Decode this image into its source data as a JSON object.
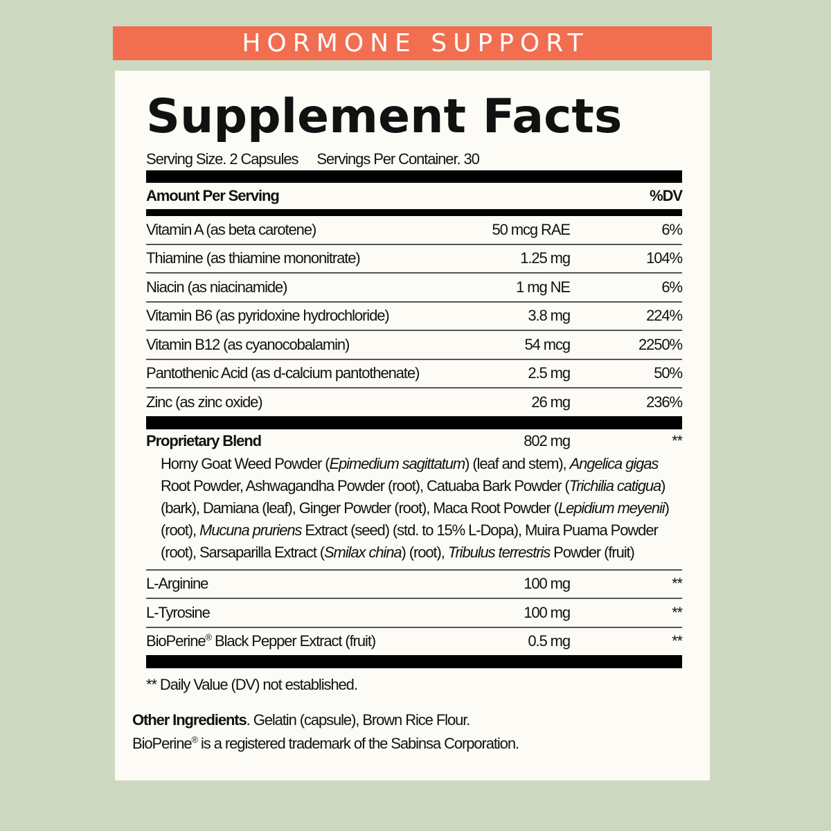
{
  "banner": "HORMONE SUPPORT",
  "colors": {
    "banner": "#f26e50",
    "background": "#cdd8c0",
    "panel": "#fdfbf6"
  },
  "title": "Supplement Facts",
  "serving_size": "Serving Size. 2 Capsules",
  "servings_per_container": "Servings Per Container. 30",
  "header": {
    "amount": "Amount Per Serving",
    "dv": "%DV"
  },
  "nutrients": [
    {
      "name": "Vitamin A (as beta carotene)",
      "amount": "50 mcg RAE",
      "dv": "6%"
    },
    {
      "name": "Thiamine (as thiamine mononitrate)",
      "amount": "1.25 mg",
      "dv": "104%"
    },
    {
      "name": "Niacin (as niacinamide)",
      "amount": "1 mg NE",
      "dv": "6%"
    },
    {
      "name": "Vitamin B6 (as pyridoxine hydrochloride)",
      "amount": "3.8 mg",
      "dv": "224%"
    },
    {
      "name": "Vitamin B12 (as cyanocobalamin)",
      "amount": "54 mcg",
      "dv": "2250%"
    },
    {
      "name": "Pantothenic Acid (as d-calcium pantothenate)",
      "amount": "2.5 mg",
      "dv": "50%"
    },
    {
      "name": "Zinc (as zinc oxide)",
      "amount": "26 mg",
      "dv": "236%"
    }
  ],
  "blend": {
    "name": "Proprietary Blend",
    "amount": "802 mg",
    "dv": "**",
    "segments": [
      {
        "text": "Horny Goat Weed Powder (",
        "italic": false
      },
      {
        "text": "Epimedium sagittatum",
        "italic": true
      },
      {
        "text": ") (leaf and stem), ",
        "italic": false
      },
      {
        "text": "Angelica gigas",
        "italic": true
      },
      {
        "text": " Root Powder, Ashwagandha Powder (root), Catuaba Bark Powder (",
        "italic": false
      },
      {
        "text": "Trichilia catigua",
        "italic": true
      },
      {
        "text": ") (bark), Damiana (leaf), Ginger Powder (root), Maca Root Powder (",
        "italic": false
      },
      {
        "text": "Lepidium meyenii",
        "italic": true
      },
      {
        "text": ") (root), ",
        "italic": false
      },
      {
        "text": "Mucuna pruriens",
        "italic": true
      },
      {
        "text": " Extract (seed) (std. to 15% L-Dopa), Muira Puama Powder (root), Sarsaparilla Extract (",
        "italic": false
      },
      {
        "text": "Smilax china",
        "italic": true
      },
      {
        "text": ") (root), ",
        "italic": false
      },
      {
        "text": "Tribulus terrestris",
        "italic": true
      },
      {
        "text": " Powder (fruit)",
        "italic": false
      }
    ]
  },
  "others": [
    {
      "name": "L-Arginine",
      "amount": "100 mg",
      "dv": "**"
    },
    {
      "name": "L-Tyrosine",
      "amount": "100 mg",
      "dv": "**"
    },
    {
      "name": "BioPerine® Black Pepper Extract (fruit)",
      "amount": "0.5 mg",
      "dv": "**"
    }
  ],
  "footnote": "** Daily Value (DV) not established.",
  "other_ingredients": {
    "label": "Other Ingredients",
    "text": ". Gelatin (capsule), Brown Rice Flour."
  },
  "trademark": "BioPerine® is a registered trademark of the Sabinsa Corporation."
}
